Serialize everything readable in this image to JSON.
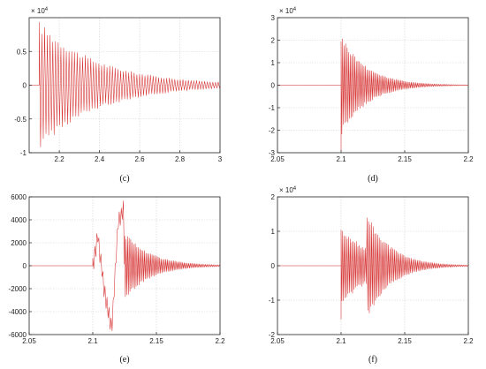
{
  "chart_data": [
    {
      "panel": "(c)",
      "type": "line",
      "caption": "(c)",
      "y_exponent": "× 10",
      "y_exponent_power": "4",
      "xlim": [
        2.05,
        3.0
      ],
      "ylim": [
        -1,
        1
      ],
      "xticks": [
        "2.2",
        "2.4",
        "2.6",
        "2.8",
        "3"
      ],
      "xtick_values": [
        2.2,
        2.4,
        2.6,
        2.8,
        3.0
      ],
      "yticks": [
        "-1",
        "-0.5",
        "0",
        "0.5"
      ],
      "ytick_values": [
        -1,
        -0.5,
        0,
        0.5
      ],
      "grid": true,
      "color": "#d62f2f",
      "series": [
        {
          "values": [
            {
              "kind": "flat",
              "x0": 2.05,
              "x1": 2.1,
              "y": 0
            },
            {
              "kind": "decay",
              "t0": 2.1,
              "t1": 3.0,
              "amp": 0.95,
              "tau": 0.3,
              "period": 0.0135
            }
          ]
        }
      ]
    },
    {
      "panel": "(d)",
      "type": "line",
      "caption": "(d)",
      "y_exponent": "× 10",
      "y_exponent_power": "4",
      "xlim": [
        2.05,
        2.2
      ],
      "ylim": [
        -3,
        3
      ],
      "xticks": [
        "2.05",
        "2.1",
        "2.15",
        "2.2"
      ],
      "xtick_values": [
        2.05,
        2.1,
        2.15,
        2.2
      ],
      "yticks": [
        "-3",
        "-2",
        "-1",
        "0",
        "1",
        "2",
        "3"
      ],
      "ytick_values": [
        -3,
        -2,
        -1,
        0,
        1,
        2,
        3
      ],
      "grid": true,
      "color": "#d62f2f",
      "series": [
        {
          "values": [
            {
              "kind": "flat",
              "x0": 2.05,
              "x1": 2.1,
              "y": 0
            },
            {
              "kind": "point",
              "x": 2.1,
              "y": -2.9
            },
            {
              "kind": "decay",
              "t0": 2.1,
              "t1": 2.2,
              "amp": 2.3,
              "tau": 0.02,
              "period": 0.0012
            }
          ]
        }
      ]
    },
    {
      "panel": "(e)",
      "type": "line",
      "caption": "(e)",
      "xlim": [
        2.05,
        2.2
      ],
      "ylim": [
        -6000,
        6000
      ],
      "xticks": [
        "2.05",
        "2.1",
        "2.15",
        "2.2"
      ],
      "xtick_values": [
        2.05,
        2.1,
        2.15,
        2.2
      ],
      "yticks": [
        "-6000",
        "-4000",
        "-2000",
        "0",
        "2000",
        "4000",
        "6000"
      ],
      "ytick_values": [
        -6000,
        -4000,
        -2000,
        0,
        2000,
        4000,
        6000
      ],
      "grid": true,
      "color": "#d62f2f",
      "series": [
        {
          "values": [
            {
              "kind": "flat",
              "x0": 2.05,
              "x1": 2.1,
              "y": 0
            },
            {
              "kind": "decay",
              "t0": 2.1,
              "t1": 2.125,
              "amp": 2500,
              "tau": 1.0,
              "period": 0.0016,
              "envelope": [
                [
                  2.1,
                  0
                ],
                [
                  2.104,
                  2600
                ],
                [
                  2.11,
                  -3000
                ],
                [
                  2.115,
                  -5400
                ],
                [
                  2.12,
                  3800
                ],
                [
                  2.124,
                  4900
                ],
                [
                  2.125,
                  0
                ]
              ]
            },
            {
              "kind": "decay",
              "t0": 2.125,
              "t1": 2.2,
              "amp": 3000,
              "tau": 0.02,
              "period": 0.0012
            }
          ]
        }
      ]
    },
    {
      "panel": "(f)",
      "type": "line",
      "caption": "(f)",
      "y_exponent": "× 10",
      "y_exponent_power": "4",
      "xlim": [
        2.05,
        2.2
      ],
      "ylim": [
        -2,
        2
      ],
      "xticks": [
        "2.05",
        "2.1",
        "2.15",
        "2.2"
      ],
      "xtick_values": [
        2.05,
        2.1,
        2.15,
        2.2
      ],
      "yticks": [
        "-2",
        "-1",
        "0",
        "1",
        "2"
      ],
      "ytick_values": [
        -2,
        -1,
        0,
        1,
        2
      ],
      "grid": true,
      "color": "#d62f2f",
      "series": [
        {
          "values": [
            {
              "kind": "flat",
              "x0": 2.05,
              "x1": 2.1,
              "y": 0
            },
            {
              "kind": "point",
              "x": 2.1,
              "y": -1.55
            },
            {
              "kind": "decay",
              "t0": 2.1,
              "t1": 2.2,
              "amp": 1.15,
              "tau": 0.025,
              "period": 0.0012
            },
            {
              "kind": "decay",
              "t0": 2.12,
              "t1": 2.2,
              "amp": 1.6,
              "tau": 0.018,
              "period": 0.0012
            }
          ]
        }
      ]
    }
  ]
}
